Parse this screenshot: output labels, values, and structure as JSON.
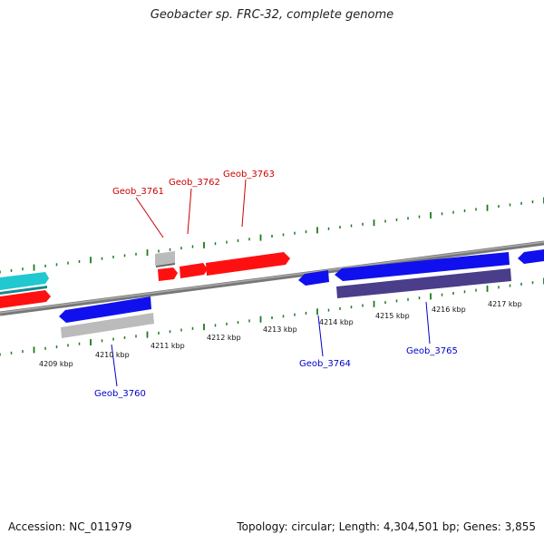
{
  "title": "Geobacter sp. FRC-32, complete genome",
  "footer": {
    "accession": "Accession: NC_011979",
    "topology": "Topology: circular; Length: 4,304,501 bp; Genes: 3,855"
  },
  "colors": {
    "forward_gene": "#ff1010",
    "reverse_gene": "#1010ee",
    "backbone": "#7a7a7a",
    "tick": "#1e7a1e",
    "pseudo": "#b8b8b8",
    "cds_dark": "#4a3d8a",
    "cyan": "#20c8d0"
  },
  "scale_labels": [
    "4209 kbp",
    "4210 kbp",
    "4211 kbp",
    "4212 kbp",
    "4213 kbp",
    "4214 kbp",
    "4215 kbp",
    "4216 kbp",
    "4217 kbp"
  ],
  "gene_labels": {
    "top": [
      "Geob_3761",
      "Geob_3762",
      "Geob_3763"
    ],
    "bottom": [
      "Geob_3760",
      "Geob_3764",
      "Geob_3765"
    ]
  }
}
